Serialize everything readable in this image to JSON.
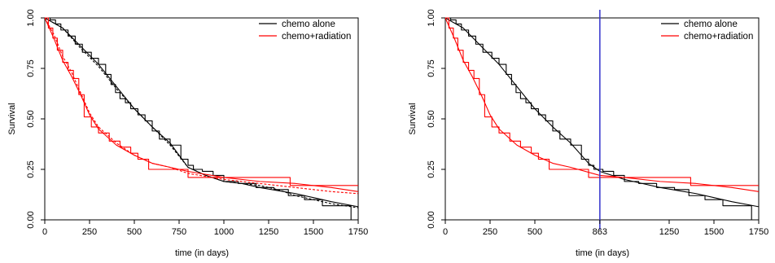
{
  "colors": {
    "chemo_alone": "#000000",
    "chemo_radiation": "#ff0000",
    "reference_line": "#3333cc",
    "frame": "#000000",
    "background": "#ffffff"
  },
  "chart_data": [
    {
      "type": "line",
      "xlabel": "time (in days)",
      "ylabel": "Survival",
      "xlim": [
        0,
        1750
      ],
      "ylim": [
        0,
        1
      ],
      "xticks": [
        0,
        250,
        500,
        750,
        1000,
        1250,
        1500,
        1750
      ],
      "yticks": [
        0,
        0.25,
        0.5,
        0.75,
        1
      ],
      "xtick_labels": [
        "0",
        "250",
        "500",
        "750",
        "1000",
        "1250",
        "1500",
        "1750"
      ],
      "ytick_labels": [
        "0.00",
        "0.25",
        "0.50",
        "0.75",
        "1.00"
      ],
      "grid": false,
      "legend_position": "top-right",
      "legend": [
        "chemo alone",
        "chemo+radiation"
      ],
      "series": [
        {
          "group": "chemo alone",
          "style": "step",
          "color": "#000000",
          "dash": "solid",
          "x": [
            0,
            30,
            60,
            90,
            130,
            170,
            210,
            260,
            300,
            340,
            370,
            395,
            420,
            450,
            480,
            520,
            560,
            600,
            640,
            700,
            760,
            800,
            830,
            880,
            940,
            1000,
            1080,
            1180,
            1280,
            1360,
            1450,
            1550,
            1700,
            1710
          ],
          "y": [
            1.0,
            0.99,
            0.97,
            0.94,
            0.91,
            0.87,
            0.83,
            0.8,
            0.77,
            0.72,
            0.67,
            0.63,
            0.6,
            0.58,
            0.55,
            0.52,
            0.49,
            0.44,
            0.4,
            0.37,
            0.3,
            0.27,
            0.25,
            0.24,
            0.22,
            0.19,
            0.18,
            0.16,
            0.15,
            0.12,
            0.1,
            0.07,
            0.07,
            0.0
          ]
        },
        {
          "group": "chemo alone",
          "style": "curve",
          "color": "#000000",
          "dash": "solid",
          "x": [
            0,
            100,
            200,
            300,
            400,
            500,
            600,
            700,
            800,
            900,
            1000,
            1100,
            1200,
            1300,
            1400,
            1500,
            1600,
            1750
          ],
          "y": [
            1.0,
            0.95,
            0.86,
            0.77,
            0.66,
            0.55,
            0.46,
            0.38,
            0.26,
            0.22,
            0.19,
            0.18,
            0.16,
            0.145,
            0.13,
            0.11,
            0.09,
            0.065
          ]
        },
        {
          "group": "chemo alone",
          "style": "curve",
          "color": "#000000",
          "dash": "dashed",
          "x": [
            0,
            100,
            200,
            300,
            400,
            500,
            600,
            700,
            800,
            900,
            1000,
            1100,
            1200,
            1300,
            1400,
            1500,
            1600,
            1750
          ],
          "y": [
            1.0,
            0.95,
            0.85,
            0.76,
            0.65,
            0.55,
            0.46,
            0.37,
            0.26,
            0.22,
            0.19,
            0.18,
            0.17,
            0.15,
            0.12,
            0.1,
            0.08,
            0.06
          ]
        },
        {
          "group": "chemo+radiation",
          "style": "step",
          "color": "#ff0000",
          "dash": "solid",
          "x": [
            0,
            20,
            45,
            70,
            100,
            130,
            160,
            190,
            220,
            260,
            300,
            360,
            420,
            480,
            520,
            580,
            800,
            1370,
            1750
          ],
          "y": [
            1.0,
            0.95,
            0.9,
            0.84,
            0.78,
            0.74,
            0.7,
            0.62,
            0.51,
            0.46,
            0.43,
            0.39,
            0.36,
            0.33,
            0.3,
            0.25,
            0.21,
            0.17,
            0.17
          ]
        },
        {
          "group": "chemo+radiation",
          "style": "curve",
          "color": "#ff0000",
          "dash": "solid",
          "x": [
            0,
            50,
            100,
            150,
            200,
            250,
            300,
            400,
            500,
            600,
            700,
            800,
            1000,
            1200,
            1400,
            1600,
            1750
          ],
          "y": [
            1.0,
            0.9,
            0.79,
            0.71,
            0.62,
            0.52,
            0.45,
            0.37,
            0.32,
            0.28,
            0.26,
            0.24,
            0.21,
            0.19,
            0.18,
            0.16,
            0.14
          ]
        },
        {
          "group": "chemo+radiation",
          "style": "curve",
          "color": "#ff0000",
          "dash": "dashed",
          "x": [
            0,
            50,
            100,
            150,
            200,
            250,
            300,
            400,
            500,
            600,
            700,
            800,
            1000,
            1200,
            1400,
            1600,
            1750
          ],
          "y": [
            1.0,
            0.92,
            0.81,
            0.73,
            0.63,
            0.53,
            0.46,
            0.38,
            0.32,
            0.28,
            0.26,
            0.23,
            0.2,
            0.18,
            0.16,
            0.14,
            0.13
          ]
        }
      ]
    },
    {
      "type": "line",
      "xlabel": "time (in days)",
      "ylabel": "Survival",
      "xlim": [
        0,
        1750
      ],
      "ylim": [
        0,
        1
      ],
      "xticks": [
        0,
        250,
        500,
        863,
        1250,
        1500,
        1750
      ],
      "yticks": [
        0,
        0.25,
        0.5,
        0.75,
        1
      ],
      "xtick_labels": [
        "0",
        "250",
        "500",
        "863",
        "1250",
        "1500",
        "1750"
      ],
      "ytick_labels": [
        "0.00",
        "0.25",
        "0.50",
        "0.75",
        "1.00"
      ],
      "grid": false,
      "legend_position": "top-right",
      "legend": [
        "chemo alone",
        "chemo+radiation"
      ],
      "vline": {
        "x": 863,
        "color": "#3333cc"
      },
      "series": [
        {
          "group": "chemo alone",
          "style": "step",
          "color": "#000000",
          "dash": "solid",
          "x": [
            0,
            30,
            60,
            90,
            130,
            170,
            210,
            260,
            300,
            340,
            370,
            395,
            420,
            450,
            480,
            520,
            560,
            600,
            640,
            700,
            760,
            800,
            830,
            880,
            940,
            1000,
            1080,
            1180,
            1280,
            1360,
            1450,
            1550,
            1700,
            1710
          ],
          "y": [
            1.0,
            0.99,
            0.97,
            0.94,
            0.91,
            0.87,
            0.83,
            0.8,
            0.77,
            0.72,
            0.67,
            0.63,
            0.6,
            0.58,
            0.55,
            0.52,
            0.49,
            0.44,
            0.4,
            0.37,
            0.3,
            0.27,
            0.25,
            0.24,
            0.22,
            0.19,
            0.18,
            0.16,
            0.15,
            0.12,
            0.1,
            0.07,
            0.07,
            0.0
          ]
        },
        {
          "group": "chemo alone",
          "style": "curve",
          "color": "#000000",
          "dash": "solid",
          "x": [
            0,
            100,
            200,
            300,
            400,
            500,
            600,
            700,
            800,
            863,
            1000,
            1100,
            1200,
            1300,
            1400,
            1500,
            1600,
            1750
          ],
          "y": [
            1.0,
            0.95,
            0.86,
            0.77,
            0.66,
            0.55,
            0.46,
            0.38,
            0.28,
            0.24,
            0.2,
            0.18,
            0.16,
            0.145,
            0.13,
            0.11,
            0.09,
            0.065
          ]
        },
        {
          "group": "chemo+radiation",
          "style": "step",
          "color": "#ff0000",
          "dash": "solid",
          "x": [
            0,
            20,
            45,
            70,
            100,
            130,
            160,
            190,
            220,
            260,
            300,
            360,
            420,
            480,
            520,
            580,
            800,
            1370,
            1750
          ],
          "y": [
            1.0,
            0.95,
            0.9,
            0.84,
            0.78,
            0.74,
            0.7,
            0.62,
            0.51,
            0.46,
            0.43,
            0.39,
            0.36,
            0.33,
            0.3,
            0.25,
            0.21,
            0.17,
            0.17
          ]
        },
        {
          "group": "chemo+radiation",
          "style": "curve",
          "color": "#ff0000",
          "dash": "solid",
          "x": [
            0,
            50,
            100,
            150,
            200,
            250,
            300,
            400,
            500,
            600,
            700,
            863,
            1000,
            1200,
            1400,
            1600,
            1750
          ],
          "y": [
            1.0,
            0.9,
            0.79,
            0.71,
            0.62,
            0.52,
            0.45,
            0.37,
            0.32,
            0.28,
            0.26,
            0.22,
            0.21,
            0.19,
            0.18,
            0.16,
            0.14
          ]
        }
      ]
    }
  ]
}
